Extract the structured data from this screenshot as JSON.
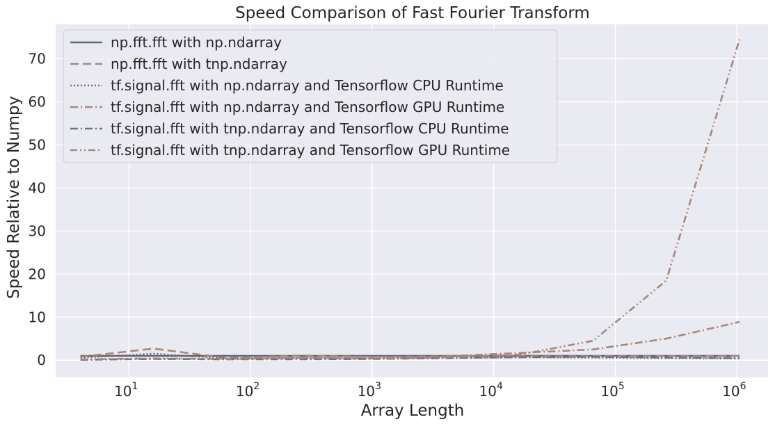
{
  "chart_data": {
    "type": "line",
    "title": "Speed Comparison of Fast Fourier Transform",
    "xlabel": "Array Length",
    "ylabel": "Speed Relative to Numpy",
    "xscale": "log",
    "xlim": [
      2.5,
      1800000
    ],
    "ylim": [
      -4,
      78
    ],
    "grid": true,
    "legend_position": "top-left",
    "x_ticks": [
      {
        "base": "10",
        "exp": "1",
        "value": 10
      },
      {
        "base": "10",
        "exp": "2",
        "value": 100
      },
      {
        "base": "10",
        "exp": "3",
        "value": 1000
      },
      {
        "base": "10",
        "exp": "4",
        "value": 10000
      },
      {
        "base": "10",
        "exp": "5",
        "value": 100000
      },
      {
        "base": "10",
        "exp": "6",
        "value": 1000000
      }
    ],
    "y_ticks": [
      "0",
      "10",
      "20",
      "30",
      "40",
      "50",
      "60",
      "70"
    ],
    "x": [
      4,
      16,
      64,
      256,
      1024,
      4096,
      16384,
      65536,
      262144,
      1048576
    ],
    "series": [
      {
        "name": "np.fft.fft with np.ndarray",
        "color": "#5f6579",
        "dash": "solid",
        "values": [
          1,
          1,
          1,
          1,
          1,
          1,
          1,
          1,
          1,
          1
        ]
      },
      {
        "name": "np.fft.fft with tnp.ndarray",
        "color": "#a8877a",
        "dash": "dashed",
        "values": [
          0.8,
          2.7,
          0.5,
          1.1,
          0.8,
          0.9,
          1.1,
          1.0,
          1.0,
          1.0
        ]
      },
      {
        "name": "tf.signal.fft with np.ndarray and Tensorflow CPU Runtime",
        "color": "#6e6a72",
        "dash": "dotted",
        "values": [
          0.6,
          1.5,
          0.4,
          0.5,
          0.4,
          0.6,
          0.7,
          0.6,
          0.5,
          0.4
        ]
      },
      {
        "name": "tf.signal.fft with np.ndarray and Tensorflow GPU Runtime",
        "color": "#a8877a",
        "dash": "dashdot",
        "values": [
          0.1,
          0.3,
          0.2,
          0.6,
          0.4,
          0.9,
          1.7,
          2.5,
          5.0,
          8.9
        ]
      },
      {
        "name": "tf.signal.fft with tnp.ndarray and Tensorflow CPU Runtime",
        "color": "#6e7088",
        "dash": "dashdot",
        "values": [
          0.1,
          0.3,
          0.2,
          0.2,
          0.3,
          0.5,
          0.7,
          0.8,
          0.6,
          0.5
        ]
      },
      {
        "name": "tf.signal.fft with tnp.ndarray and Tensorflow GPU Runtime",
        "color": "#a8877a",
        "dash": "dashdotdot",
        "values": [
          0.2,
          0.4,
          0.3,
          0.5,
          0.4,
          0.7,
          1.3,
          4.5,
          18.5,
          74.5
        ]
      }
    ]
  }
}
